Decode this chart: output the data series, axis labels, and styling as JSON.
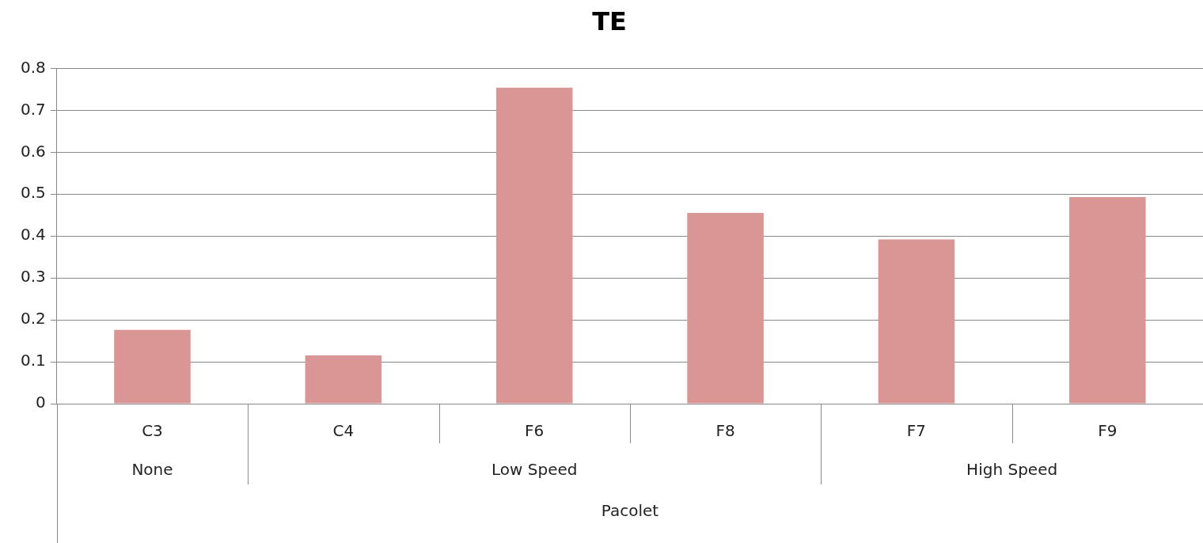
{
  "chart_data": {
    "type": "bar",
    "title": "TE",
    "categories": [
      "C3",
      "C4",
      "F6",
      "F8",
      "F7",
      "F9"
    ],
    "values": [
      0.176,
      0.115,
      0.754,
      0.455,
      0.392,
      0.493
    ],
    "color": "#d99694",
    "ylim": [
      0,
      0.8
    ],
    "yticks": [
      0,
      0.1,
      0.2,
      0.3,
      0.4,
      0.5,
      0.6,
      0.7,
      0.8
    ],
    "grid": "y",
    "legend": false,
    "annotations": [
      "None",
      "Low Speed",
      "High Speed",
      "Pacolet"
    ]
  }
}
